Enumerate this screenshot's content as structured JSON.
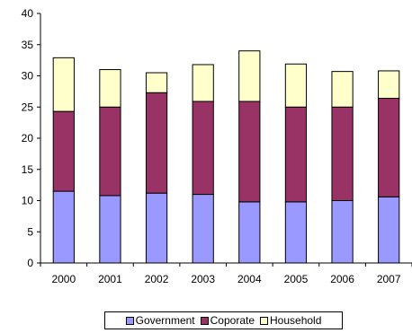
{
  "chart_data": {
    "type": "bar",
    "stacked": true,
    "categories": [
      "2000",
      "2001",
      "2002",
      "2003",
      "2004",
      "2005",
      "2006",
      "2007"
    ],
    "series": [
      {
        "name": "Government",
        "color": "#9999FF",
        "values": [
          11.5,
          10.8,
          11.2,
          11.0,
          9.8,
          9.8,
          10.0,
          10.6
        ]
      },
      {
        "name": "Coporate",
        "color": "#993366",
        "values": [
          12.8,
          14.2,
          16.1,
          14.9,
          16.1,
          15.2,
          15.0,
          15.8
        ]
      },
      {
        "name": "Household",
        "color": "#FFFFCC",
        "values": [
          8.6,
          6.0,
          3.2,
          5.9,
          8.1,
          6.9,
          5.7,
          4.4
        ]
      }
    ],
    "yticks": [
      "0",
      "5",
      "10",
      "15",
      "20",
      "25",
      "30",
      "35",
      "40"
    ],
    "ylim": [
      0,
      40
    ],
    "grid": false,
    "legend_position": "bottom"
  }
}
